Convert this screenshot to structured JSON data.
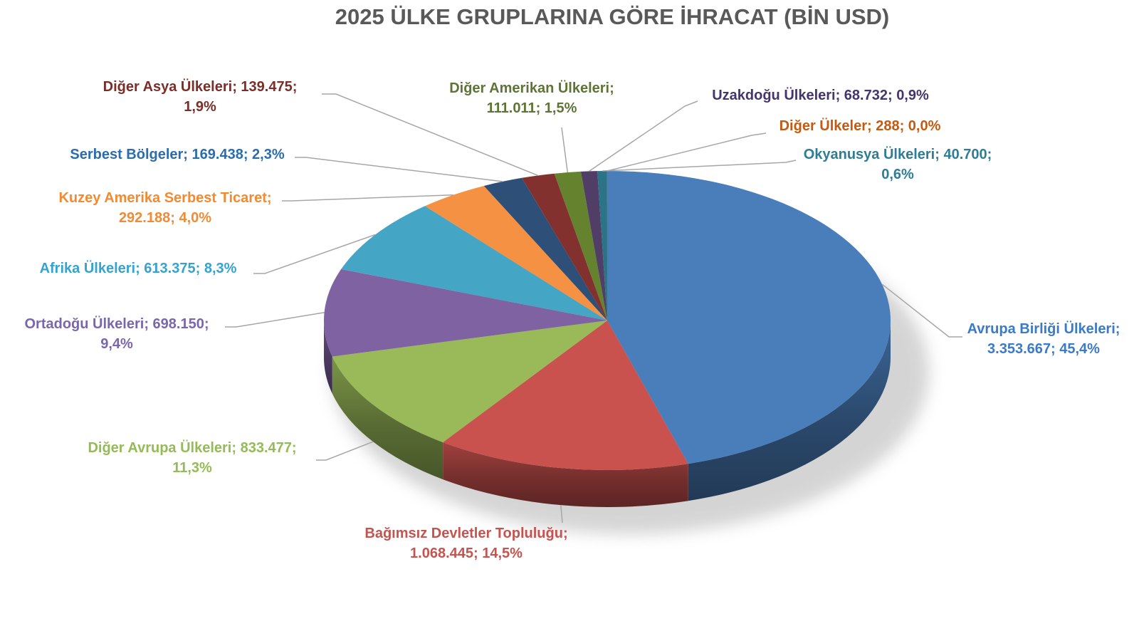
{
  "background": "#FFFFFF",
  "title_color": "#595959",
  "leader_line_color": "#A6A6A6",
  "chart_data": {
    "type": "pie",
    "style": "3d",
    "title": "2025 ÜLKE GRUPLARINA GÖRE İHRACAT (BİN USD)",
    "unit": "BİN USD",
    "legend_position": "none",
    "label_format": "name; value; percent",
    "start_angle_deg": -90,
    "direction": "clockwise",
    "slices": [
      {
        "name": "Avrupa Birliği Ülkeleri",
        "value": 3353667,
        "value_label": "3.353.667",
        "pct": 45.4,
        "pct_label": "45,4%",
        "color": "#4A7EBB",
        "label_color": "#3A7BC8",
        "label_lines": [
          "Avrupa Birliği Ülkeleri;",
          "3.353.667; 45,4%"
        ]
      },
      {
        "name": "Bağımsız Devletler Topluluğu",
        "value": 1068445,
        "value_label": "1.068.445",
        "pct": 14.5,
        "pct_label": "14,5%",
        "color": "#C9514E",
        "label_color": "#C5534F",
        "label_lines": [
          "Bağımsız Devletler Topluluğu;",
          "1.068.445; 14,5%"
        ]
      },
      {
        "name": "Diğer Avrupa Ülkeleri",
        "value": 833477,
        "value_label": "833.477",
        "pct": 11.3,
        "pct_label": "11,3%",
        "color": "#9ABA59",
        "label_color": "#94BB55",
        "label_lines": [
          "Diğer Avrupa Ülkeleri; 833.477;",
          "11,3%"
        ]
      },
      {
        "name": "Ortadoğu Ülkeleri",
        "value": 698150,
        "value_label": "698.150",
        "pct": 9.4,
        "pct_label": "9,4%",
        "color": "#7E62A1",
        "label_color": "#7A66AC",
        "label_lines": [
          "Ortadoğu Ülkeleri; 698.150;",
          "9,4%"
        ]
      },
      {
        "name": "Afrika Ülkeleri",
        "value": 613375,
        "value_label": "613.375",
        "pct": 8.3,
        "pct_label": "8,3%",
        "color": "#45A5C4",
        "label_color": "#35A3CE",
        "label_lines": [
          "Afrika Ülkeleri; 613.375; 8,3%"
        ]
      },
      {
        "name": "Kuzey Amerika Serbest Ticaret",
        "value": 292188,
        "value_label": "292.188",
        "pct": 4.0,
        "pct_label": "4,0%",
        "color": "#F49143",
        "label_color": "#F28A32",
        "label_lines": [
          "Kuzey Amerika Serbest Ticaret;",
          "292.188; 4,0%"
        ]
      },
      {
        "name": "Serbest Bölgeler",
        "value": 169438,
        "value_label": "169.438",
        "pct": 2.3,
        "pct_label": "2,3%",
        "color": "#2E4F78",
        "label_color": "#2A6DAE",
        "label_lines": [
          "Serbest Bölgeler; 169.438; 2,3%"
        ]
      },
      {
        "name": "Diğer Asya Ülkeleri",
        "value": 139475,
        "value_label": "139.475",
        "pct": 1.9,
        "pct_label": "1,9%",
        "color": "#82312E",
        "label_color": "#7B2D28",
        "label_lines": [
          "Diğer Asya Ülkeleri; 139.475;",
          "1,9%"
        ]
      },
      {
        "name": "Diğer Amerikan Ülkeleri",
        "value": 111011,
        "value_label": "111.011",
        "pct": 1.5,
        "pct_label": "1,5%",
        "color": "#65832F",
        "label_color": "#5E7434",
        "label_lines": [
          "Diğer Amerikan Ülkeleri;",
          "111.011; 1,5%"
        ]
      },
      {
        "name": "Uzakdoğu Ülkeleri",
        "value": 68732,
        "value_label": "68.732",
        "pct": 0.9,
        "pct_label": "0,9%",
        "color": "#503E66",
        "label_color": "#44356F",
        "label_lines": [
          "Uzakdoğu Ülkeleri; 68.732; 0,9%"
        ]
      },
      {
        "name": "Okyanusya Ülkeleri",
        "value": 40700,
        "value_label": "40.700",
        "pct": 0.6,
        "pct_label": "0,6%",
        "color": "#2B7386",
        "label_color": "#2E7D95",
        "label_lines": [
          "Okyanusya Ülkeleri; 40.700;",
          "0,6%"
        ]
      },
      {
        "name": "Diğer Ülkeler",
        "value": 288,
        "value_label": "288",
        "pct": 0.0,
        "pct_label": "0,0%",
        "color": "#B65708",
        "label_color": "#C45911",
        "label_lines": [
          "Diğer Ülkeler; 288; 0,0%"
        ]
      }
    ]
  }
}
